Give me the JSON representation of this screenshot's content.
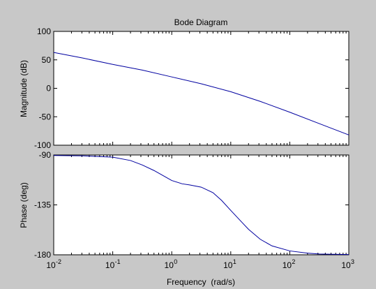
{
  "chart_data": {
    "type": "line",
    "title": "Bode Diagram",
    "xlabel": "Frequency  (rad/s)",
    "x_scale": "log",
    "xlim": [
      0.01,
      1000
    ],
    "x_ticks": [
      {
        "value": 0.01,
        "base": "10",
        "exp": "-2"
      },
      {
        "value": 0.1,
        "base": "10",
        "exp": "-1"
      },
      {
        "value": 1,
        "base": "10",
        "exp": "0"
      },
      {
        "value": 10,
        "base": "10",
        "exp": "1"
      },
      {
        "value": 100,
        "base": "10",
        "exp": "2"
      },
      {
        "value": 1000,
        "base": "10",
        "exp": "3"
      }
    ],
    "grid": false,
    "line_color": "#0000a0",
    "panels": [
      {
        "id": "magnitude",
        "ylabel": "Magnitude (dB)",
        "ylim": [
          -100,
          100
        ],
        "y_ticks": [
          100,
          50,
          0,
          -50,
          -100
        ],
        "x": [
          0.01,
          0.0316,
          0.1,
          0.316,
          1,
          3.16,
          10,
          31.6,
          100,
          316,
          1000
        ],
        "y": [
          63,
          53,
          42,
          32,
          20,
          8,
          -6,
          -23,
          -42,
          -62,
          -82
        ]
      },
      {
        "id": "phase",
        "ylabel": "Phase (deg)",
        "ylim": [
          -180,
          -90
        ],
        "y_ticks": [
          -90,
          -135,
          -180
        ],
        "x": [
          0.01,
          0.0316,
          0.1,
          0.2,
          0.316,
          0.5,
          1,
          1.5,
          2,
          3.16,
          5,
          7,
          10,
          15,
          20,
          31.6,
          50,
          100,
          200,
          316,
          1000
        ],
        "y": [
          -90.5,
          -90.8,
          -92,
          -95,
          -99,
          -104,
          -113,
          -116,
          -117,
          -119,
          -124,
          -131,
          -140,
          -150,
          -157,
          -166,
          -172,
          -176.5,
          -178.5,
          -179.3,
          -179.8
        ]
      }
    ]
  }
}
